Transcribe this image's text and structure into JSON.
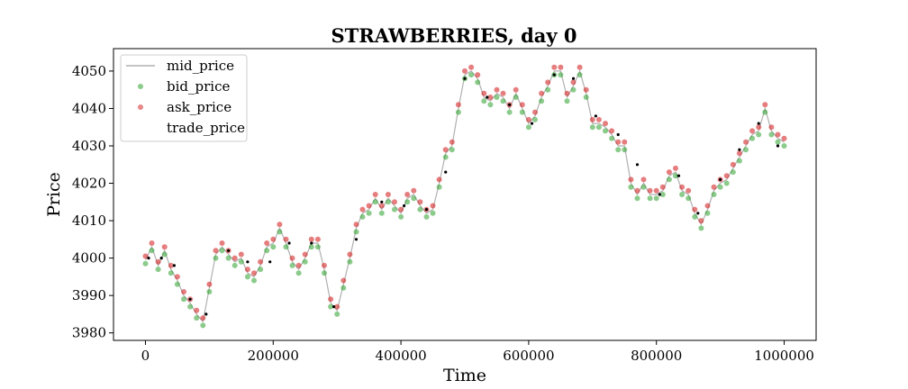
{
  "chart_data": {
    "type": "scatter",
    "title": "STRAWBERRIES, day 0",
    "xlabel": "Time",
    "ylabel": "Price",
    "xlim": [
      -50000,
      1050000
    ],
    "ylim": [
      3978,
      4056
    ],
    "xticks": [
      0,
      200000,
      400000,
      600000,
      800000,
      1000000
    ],
    "yticks": [
      3980,
      3990,
      4000,
      4010,
      4020,
      4030,
      4040,
      4050
    ],
    "legend_position": "top-left",
    "grid": false,
    "series": [
      {
        "name": "mid_price",
        "kind": "line",
        "color": "#b0b0b0"
      },
      {
        "name": "bid_price",
        "kind": "points",
        "color": "#2ca02c"
      },
      {
        "name": "ask_price",
        "kind": "points",
        "color": "#d62728"
      },
      {
        "name": "trade_price",
        "kind": "points",
        "color": "#000000"
      }
    ],
    "x": [
      0,
      10000,
      20000,
      30000,
      40000,
      50000,
      60000,
      70000,
      80000,
      90000,
      100000,
      110000,
      120000,
      130000,
      140000,
      150000,
      160000,
      170000,
      180000,
      190000,
      200000,
      210000,
      220000,
      230000,
      240000,
      250000,
      260000,
      270000,
      280000,
      290000,
      300000,
      310000,
      320000,
      330000,
      340000,
      350000,
      360000,
      370000,
      380000,
      390000,
      400000,
      410000,
      420000,
      430000,
      440000,
      450000,
      460000,
      470000,
      480000,
      490000,
      500000,
      510000,
      520000,
      530000,
      540000,
      550000,
      560000,
      570000,
      580000,
      590000,
      600000,
      610000,
      620000,
      630000,
      640000,
      650000,
      660000,
      670000,
      680000,
      690000,
      700000,
      710000,
      720000,
      730000,
      740000,
      750000,
      760000,
      770000,
      780000,
      790000,
      800000,
      810000,
      820000,
      830000,
      840000,
      850000,
      860000,
      870000,
      880000,
      890000,
      900000,
      910000,
      920000,
      930000,
      940000,
      950000,
      960000,
      970000,
      980000,
      990000,
      1000000
    ],
    "mid_price": [
      3999.5,
      4003,
      3998,
      4002,
      3997,
      3994,
      3990,
      3988,
      3985,
      3983,
      3992,
      4001,
      4003,
      4001,
      3999,
      4000,
      3996,
      3995,
      3998,
      4003,
      4004,
      4008,
      4004,
      3999,
      3997,
      4000,
      4004,
      4004,
      3997,
      3988,
      3986,
      3993,
      4000,
      4008,
      4012,
      4013,
      4016,
      4013,
      4016,
      4014,
      4012,
      4016,
      4017,
      4014,
      4012,
      4013,
      4020,
      4028,
      4030,
      4040,
      4049,
      4050,
      4048,
      4043,
      4042,
      4044,
      4043,
      4040,
      4044,
      4040,
      4036,
      4038,
      4043,
      4046,
      4050,
      4050,
      4043,
      4046,
      4050,
      4044,
      4036,
      4036,
      4035,
      4033,
      4030,
      4030,
      4020,
      4017,
      4020,
      4017,
      4017,
      4018,
      4022,
      4023,
      4018,
      4017,
      4012,
      4009,
      4013,
      4018,
      4020,
      4021,
      4024,
      4027,
      4030,
      4033,
      4034,
      4040,
      4034,
      4032,
      4031
    ],
    "trade_x": [
      5000,
      25000,
      45000,
      70000,
      95000,
      130000,
      160000,
      195000,
      225000,
      260000,
      295000,
      330000,
      370000,
      405000,
      440000,
      470000,
      500000,
      535000,
      570000,
      605000,
      640000,
      670000,
      705000,
      740000,
      770000,
      805000,
      835000,
      865000,
      900000,
      930000,
      960000,
      990000
    ],
    "trade_price": [
      4000,
      4000,
      3998,
      3989,
      3985,
      4002,
      3999,
      3999,
      4004,
      4004,
      3987,
      4005,
      4015,
      4014,
      4013,
      4023,
      4048,
      4043,
      4041,
      4036,
      4049,
      4048,
      4038,
      4033,
      4025,
      4017,
      4022,
      4012,
      4021,
      4029,
      4036,
      4030
    ]
  }
}
